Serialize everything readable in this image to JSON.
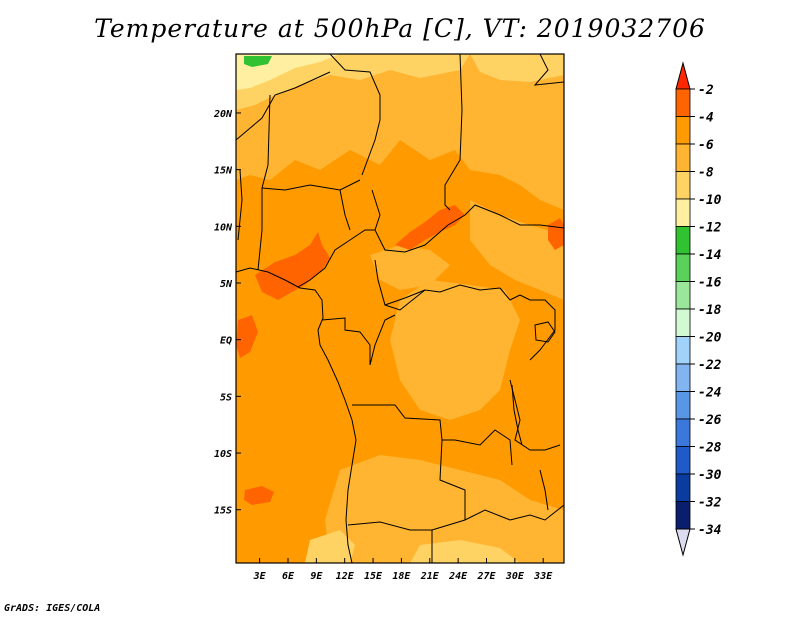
{
  "title": "Temperature at 500hPa [C], VT: 2019032706",
  "footer": "GrADS: IGES/COLA",
  "map": {
    "lon_ticks": [
      "3E",
      "6E",
      "9E",
      "12E",
      "15E",
      "18E",
      "21E",
      "24E",
      "27E",
      "30E",
      "33E"
    ],
    "lon_values": [
      3,
      6,
      9,
      12,
      15,
      18,
      21,
      24,
      27,
      30,
      33
    ],
    "lat_ticks": [
      "20N",
      "15N",
      "10N",
      "5N",
      "EQ",
      "5S",
      "10S",
      "15S"
    ],
    "lat_values": [
      20,
      15,
      10,
      5,
      0,
      -5,
      -10,
      -15
    ],
    "lon_range": [
      0.5,
      35.2
    ],
    "lat_range": [
      -19.7,
      25.2
    ]
  },
  "colorbar": {
    "labels": [
      "-2",
      "-4",
      "-6",
      "-8",
      "-10",
      "-12",
      "-14",
      "-16",
      "-18",
      "-20",
      "-22",
      "-24",
      "-26",
      "-28",
      "-30",
      "-32",
      "-34"
    ],
    "colors": [
      "#ff2800",
      "#ff6400",
      "#ff9b00",
      "#ffb432",
      "#ffd264",
      "#ffefa0",
      "#30c230",
      "#5ad25a",
      "#9ae69a",
      "#d2fad2",
      "#a0d2fa",
      "#82b4f0",
      "#5a96e6",
      "#3c78dc",
      "#1e5ac8",
      "#0a3ca0",
      "#0a1e6e",
      "#dcdcf0"
    ],
    "top_color": "#ff2800",
    "bottom_color": "#dcdcf0"
  },
  "fields": {
    "base_color": "#ff9b00",
    "warm_color": "#ff6400",
    "cool1_color": "#ffb432",
    "cool2_color": "#ffd264",
    "cool3_color": "#ffefa0",
    "cold_color": "#30c230"
  }
}
